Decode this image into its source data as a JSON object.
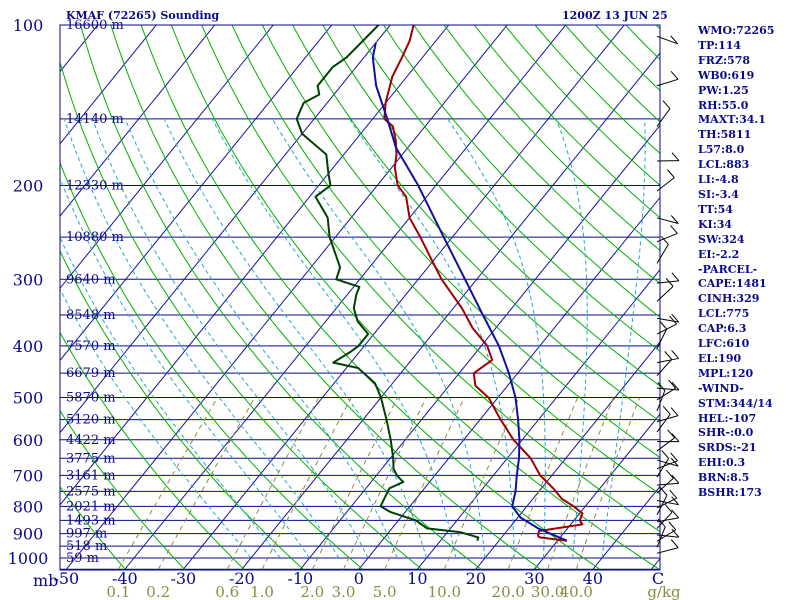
{
  "header": {
    "station": "KMAF (72265) Sounding",
    "time": "1200Z 13 JUN 25"
  },
  "stats": [
    "WMO:72265",
    "TP:114",
    "FRZ:578",
    "WB0:619",
    "PW:1.25",
    "RH:55.0",
    "MAXT:34.1",
    "TH:5811",
    "L57:8.0",
    "LCL:883",
    "LI:-4.8",
    "SI:-3.4",
    "TT:54",
    "KI:34",
    "SW:324",
    "EI:-2.2",
    "-PARCEL-",
    "CAPE:1481",
    "CINH:329",
    "LCL:775",
    "CAP:6.3",
    "LFC:610",
    "EL:190",
    "MPL:120",
    "-WIND-",
    "STM:344/14",
    "HEL:-107",
    "SHR-:0.0",
    "SRDS:-21",
    "EHI:0.3",
    "BRN:8.5",
    "BSHR:173"
  ],
  "chart_data": {
    "type": "line",
    "title": "KMAF (72265) Sounding",
    "subtitle": "1200Z 13 JUN 25",
    "xlabel": "C",
    "ylabel": "mb",
    "temperature_ticks": [
      -50,
      -40,
      -30,
      -20,
      -10,
      0,
      10,
      20,
      30,
      40
    ],
    "temperature_tick_label_suffix": "C",
    "mixing_ratio_ticks": [
      "0.1",
      "0.2",
      "0.6",
      "1.0",
      "2.0",
      "3.0",
      "5.0",
      "10.0",
      "20.0",
      "30.0",
      "40.0"
    ],
    "mixing_ratio_unit": "g/kg",
    "pressure_levels": [
      {
        "p": 100,
        "label": "100"
      },
      {
        "p": 200,
        "label": "200"
      },
      {
        "p": 300,
        "label": "300"
      },
      {
        "p": 400,
        "label": "400"
      },
      {
        "p": 500,
        "label": "500"
      },
      {
        "p": 600,
        "label": "600"
      },
      {
        "p": 700,
        "label": "700"
      },
      {
        "p": 800,
        "label": "800"
      },
      {
        "p": 900,
        "label": "900"
      },
      {
        "p": 1000,
        "label": "1000"
      }
    ],
    "height_labels": [
      {
        "p": 100,
        "label": "16600 m"
      },
      {
        "p": 150,
        "label": "14140 m"
      },
      {
        "p": 200,
        "label": "12330 m"
      },
      {
        "p": 250,
        "label": "10880 m"
      },
      {
        "p": 300,
        "label": "9640 m"
      },
      {
        "p": 350,
        "label": "8548 m"
      },
      {
        "p": 400,
        "label": "7570 m"
      },
      {
        "p": 450,
        "label": "6679 m"
      },
      {
        "p": 500,
        "label": "5870 m"
      },
      {
        "p": 550,
        "label": "5120 m"
      },
      {
        "p": 600,
        "label": "4422 m"
      },
      {
        "p": 650,
        "label": "3775 m"
      },
      {
        "p": 700,
        "label": "3161 m"
      },
      {
        "p": 750,
        "label": "2575 m"
      },
      {
        "p": 800,
        "label": "2021 m"
      },
      {
        "p": 850,
        "label": "1493 m"
      },
      {
        "p": 900,
        "label": "997 m"
      },
      {
        "p": 950,
        "label": "518 m"
      },
      {
        "p": 1000,
        "label": "59 m"
      }
    ],
    "series": [
      {
        "name": "temperature",
        "color": "#a00000",
        "points": [
          [
            928,
            31.6
          ],
          [
            915,
            26.5
          ],
          [
            909,
            26.0
          ],
          [
            890,
            25.5
          ],
          [
            865,
            32.0
          ],
          [
            850,
            31.0
          ],
          [
            825,
            30.5
          ],
          [
            800,
            28.0
          ],
          [
            775,
            25.0
          ],
          [
            740,
            22.0
          ],
          [
            700,
            18.0
          ],
          [
            650,
            14.0
          ],
          [
            600,
            8.5
          ],
          [
            550,
            3.5
          ],
          [
            500,
            -1.6
          ],
          [
            475,
            -5.5
          ],
          [
            450,
            -7.5
          ],
          [
            425,
            -6.2
          ],
          [
            400,
            -9.0
          ],
          [
            370,
            -14.0
          ],
          [
            340,
            -18.5
          ],
          [
            300,
            -26.0
          ],
          [
            270,
            -31.5
          ],
          [
            250,
            -35.5
          ],
          [
            230,
            -40.0
          ],
          [
            210,
            -43.5
          ],
          [
            200,
            -46.5
          ],
          [
            185,
            -49.5
          ],
          [
            175,
            -51.0
          ],
          [
            165,
            -53.0
          ],
          [
            155,
            -55.5
          ],
          [
            150,
            -58.0
          ],
          [
            140,
            -60.0
          ],
          [
            125,
            -62.5
          ],
          [
            115,
            -63.5
          ],
          [
            107,
            -64.5
          ],
          [
            100,
            -66.0
          ]
        ]
      },
      {
        "name": "dewpoint",
        "color": "#004000",
        "points": [
          [
            928,
            16.3
          ],
          [
            915,
            16.0
          ],
          [
            895,
            12.3
          ],
          [
            880,
            6.0
          ],
          [
            850,
            3.0
          ],
          [
            820,
            -2.5
          ],
          [
            800,
            -5.0
          ],
          [
            770,
            -5.5
          ],
          [
            740,
            -6.0
          ],
          [
            720,
            -4.5
          ],
          [
            700,
            -6.5
          ],
          [
            680,
            -8.0
          ],
          [
            650,
            -9.5
          ],
          [
            600,
            -12.5
          ],
          [
            550,
            -16.0
          ],
          [
            500,
            -20.0
          ],
          [
            470,
            -23.0
          ],
          [
            440,
            -28.0
          ],
          [
            430,
            -33.0
          ],
          [
            410,
            -31.5
          ],
          [
            400,
            -31.0
          ],
          [
            380,
            -31.0
          ],
          [
            360,
            -34.5
          ],
          [
            340,
            -37.0
          ],
          [
            320,
            -38.5
          ],
          [
            310,
            -39.0
          ],
          [
            300,
            -44.0
          ],
          [
            285,
            -45.0
          ],
          [
            250,
            -51.0
          ],
          [
            230,
            -54.0
          ],
          [
            210,
            -59.0
          ],
          [
            200,
            -58.0
          ],
          [
            190,
            -60.0
          ],
          [
            175,
            -63.0
          ],
          [
            160,
            -70.0
          ],
          [
            150,
            -73.0
          ],
          [
            140,
            -74.0
          ],
          [
            135,
            -72.5
          ],
          [
            130,
            -74.0
          ],
          [
            120,
            -74.0
          ],
          [
            115,
            -73.0
          ],
          [
            100,
            -72.0
          ]
        ]
      },
      {
        "name": "parcel",
        "color": "#1010a0",
        "points": [
          [
            928,
            31.6
          ],
          [
            880,
            25.0
          ],
          [
            840,
            20.5
          ],
          [
            800,
            17.5
          ],
          [
            750,
            16.0
          ],
          [
            700,
            14.0
          ],
          [
            650,
            12.0
          ],
          [
            600,
            9.5
          ],
          [
            550,
            6.5
          ],
          [
            500,
            3.0
          ],
          [
            450,
            -1.5
          ],
          [
            400,
            -7.0
          ],
          [
            350,
            -14.0
          ],
          [
            300,
            -22.0
          ],
          [
            250,
            -31.5
          ],
          [
            200,
            -43.0
          ],
          [
            170,
            -52.0
          ],
          [
            150,
            -57.5
          ],
          [
            130,
            -64.0
          ],
          [
            115,
            -68.5
          ],
          [
            108,
            -70.0
          ]
        ]
      }
    ]
  }
}
